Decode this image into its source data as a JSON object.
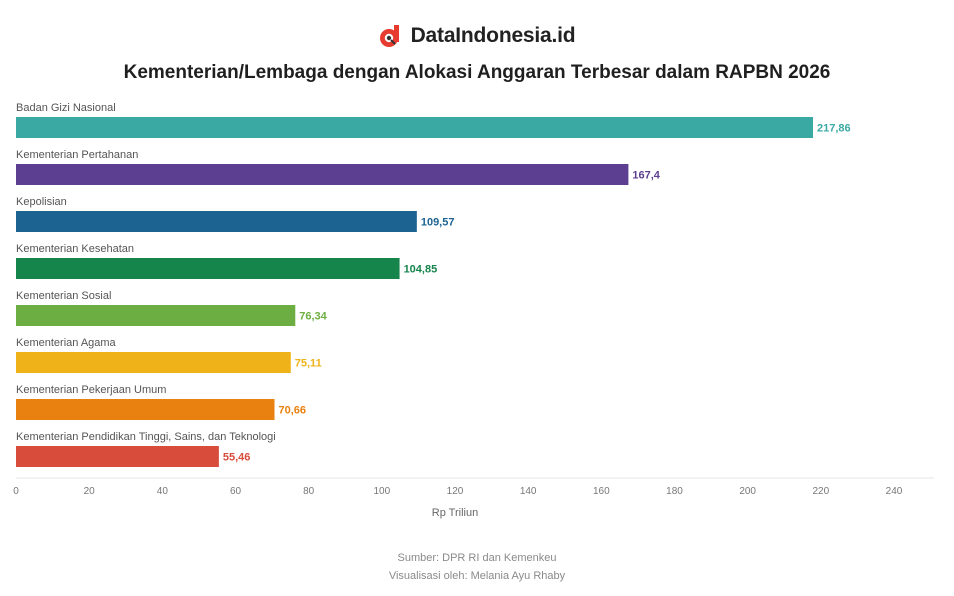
{
  "brand": {
    "name": "DataIndonesia.id",
    "logo_icon": "data-indonesia-logo-icon",
    "accent": "#e63b2e"
  },
  "title": "Kementerian/Lembaga dengan Alokasi Anggaran Terbesar dalam RAPBN 2026",
  "chart_data": {
    "type": "bar",
    "orientation": "horizontal",
    "categories": [
      "Badan Gizi Nasional",
      "Kementerian Pertahanan",
      "Kepolisian",
      "Kementerian Kesehatan",
      "Kementerian Sosial",
      "Kementerian Agama",
      "Kementerian Pekerjaan Umum",
      "Kementerian Pendidikan Tinggi, Sains, dan Teknologi"
    ],
    "values": [
      217.86,
      167.4,
      109.57,
      104.85,
      76.34,
      75.11,
      70.66,
      55.46
    ],
    "value_labels": [
      "217,86",
      "167,4",
      "109,57",
      "104,85",
      "76,34",
      "75,11",
      "70,66",
      "55,46"
    ],
    "colors": [
      "#3aa9a3",
      "#5c3f91",
      "#1d6391",
      "#15854c",
      "#6cae41",
      "#f0b219",
      "#e8810f",
      "#d84c3c"
    ],
    "xlabel": "Rp Triliun",
    "ylabel": "",
    "xlim": [
      0,
      240
    ],
    "xticks": [
      0,
      20,
      40,
      60,
      80,
      100,
      120,
      140,
      160,
      180,
      200,
      220,
      240
    ],
    "grid": false
  },
  "footer": {
    "source": "Sumber: DPR RI dan Kemenkeu",
    "visualization": "Visualisasi oleh: Melania Ayu Rhaby"
  }
}
